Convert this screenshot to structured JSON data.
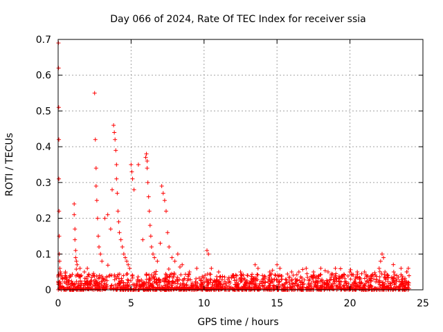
{
  "chart_data": {
    "type": "scatter",
    "title": "Day 066 of 2024, Rate Of TEC Index for receiver ssia",
    "xlabel": "GPS time / hours",
    "ylabel": "ROTI / TECUs",
    "xlim": [
      0,
      25
    ],
    "ylim": [
      0,
      0.7
    ],
    "grid": true,
    "marker": "+",
    "series_color": "#ff0000",
    "xticks": [
      0,
      5,
      10,
      15,
      20,
      25
    ],
    "xtick_labels": [
      "0",
      "5",
      "10",
      "15",
      "20",
      "25"
    ],
    "yticks": [
      0,
      0.1,
      0.2,
      0.3,
      0.4,
      0.5,
      0.6,
      0.7
    ],
    "ytick_labels": [
      "0",
      "0.1",
      "0.2",
      "0.3",
      "0.4",
      "0.5",
      "0.6",
      "0.7"
    ],
    "series": [
      {
        "name": "ROTI",
        "x": [
          0.02,
          0.03,
          0.04,
          0.05,
          0.05,
          0.06,
          0.07,
          0.08,
          0.1,
          0.12,
          0.15,
          0.2,
          0.3,
          0.5,
          0.8,
          1.1,
          1.1,
          1.15,
          1.15,
          1.2,
          1.2,
          1.25,
          1.3,
          1.5,
          1.8,
          2.0,
          2.5,
          2.55,
          2.6,
          2.6,
          2.65,
          2.7,
          2.75,
          2.8,
          2.9,
          3.0,
          3.2,
          3.4,
          3.6,
          3.7,
          3.8,
          3.85,
          3.9,
          3.95,
          4.0,
          4.0,
          4.05,
          4.1,
          4.15,
          4.2,
          4.3,
          4.4,
          4.5,
          4.6,
          4.7,
          4.8,
          4.9,
          5.0,
          5.05,
          5.1,
          5.2,
          5.5,
          5.8,
          6.0,
          6.05,
          6.1,
          6.1,
          6.15,
          6.2,
          6.25,
          6.3,
          6.35,
          6.4,
          6.5,
          6.6,
          6.8,
          7.0,
          7.1,
          7.2,
          7.3,
          7.4,
          7.5,
          7.6,
          7.8,
          8.0,
          8.2,
          8.5,
          9.0,
          9.5,
          10.2,
          10.3,
          10.5,
          11.0,
          12.0,
          12.5,
          13.0,
          13.5,
          13.7,
          14.0,
          14.5,
          15.0,
          15.2,
          16.0,
          16.5,
          17.0,
          17.5,
          18.0,
          18.5,
          19.0,
          19.5,
          20.0,
          20.5,
          21.0,
          21.5,
          22.0,
          22.1,
          22.2,
          22.3,
          22.4,
          22.6,
          23.0,
          23.5,
          23.9,
          24.0
        ],
        "y": [
          0.69,
          0.62,
          0.51,
          0.42,
          0.31,
          0.22,
          0.15,
          0.1,
          0.08,
          0.06,
          0.05,
          0.04,
          0.03,
          0.05,
          0.04,
          0.24,
          0.21,
          0.17,
          0.14,
          0.11,
          0.09,
          0.08,
          0.07,
          0.06,
          0.05,
          0.06,
          0.55,
          0.42,
          0.34,
          0.29,
          0.25,
          0.2,
          0.15,
          0.12,
          0.1,
          0.08,
          0.2,
          0.21,
          0.17,
          0.28,
          0.46,
          0.44,
          0.42,
          0.39,
          0.35,
          0.31,
          0.27,
          0.22,
          0.19,
          0.16,
          0.14,
          0.12,
          0.1,
          0.09,
          0.08,
          0.07,
          0.06,
          0.35,
          0.33,
          0.31,
          0.28,
          0.35,
          0.14,
          0.37,
          0.38,
          0.36,
          0.34,
          0.3,
          0.26,
          0.22,
          0.18,
          0.15,
          0.12,
          0.1,
          0.09,
          0.08,
          0.13,
          0.29,
          0.27,
          0.25,
          0.22,
          0.16,
          0.12,
          0.09,
          0.08,
          0.1,
          0.07,
          0.05,
          0.06,
          0.11,
          0.1,
          0.06,
          0.05,
          0.04,
          0.05,
          0.04,
          0.07,
          0.06,
          0.04,
          0.05,
          0.07,
          0.06,
          0.05,
          0.05,
          0.06,
          0.05,
          0.06,
          0.05,
          0.06,
          0.04,
          0.05,
          0.05,
          0.05,
          0.04,
          0.06,
          0.08,
          0.1,
          0.09,
          0.05,
          0.04,
          0.05,
          0.06,
          0.05,
          0.06
        ]
      }
    ]
  }
}
